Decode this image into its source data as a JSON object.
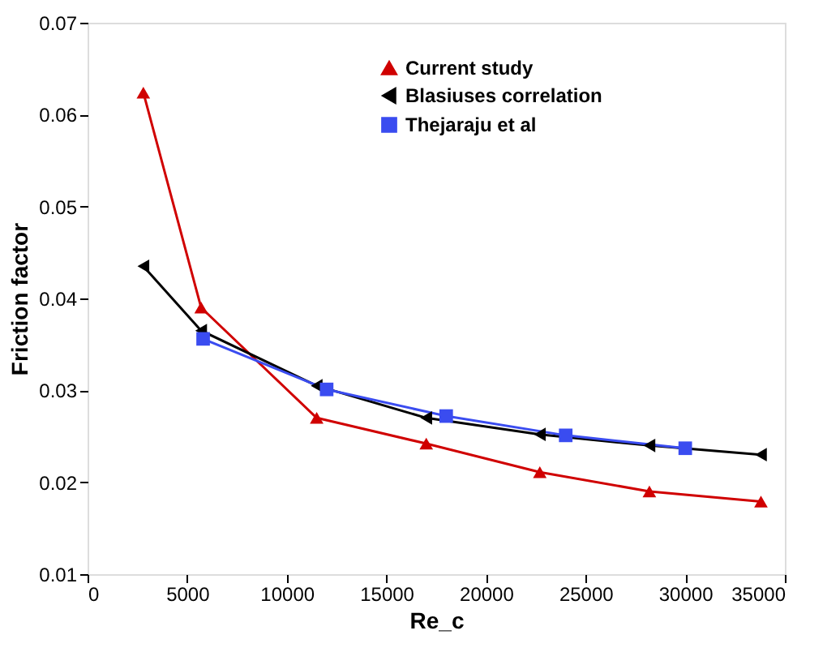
{
  "chart_data": {
    "type": "line",
    "xlabel": "Re_c",
    "ylabel": "Friction factor",
    "xlim": [
      0,
      35000
    ],
    "xticks": [
      0,
      5000,
      10000,
      15000,
      20000,
      25000,
      30000,
      35000
    ],
    "ylim": [
      0.01,
      0.07
    ],
    "yticks": [
      0.01,
      0.02,
      0.03,
      0.04,
      0.05,
      0.06,
      0.07
    ],
    "grid": false,
    "legend": "top right",
    "line_style": "solid",
    "series": [
      {
        "name": "Current study",
        "color": "#d00000",
        "marker": "triangle",
        "x": [
          2800,
          5700,
          11500,
          17000,
          22700,
          28200,
          33800
        ],
        "values": [
          0.0624,
          0.039,
          0.027,
          0.0242,
          0.0211,
          0.019,
          0.0179
        ]
      },
      {
        "name": "Blasiuses correlation",
        "color": "#000000",
        "marker": "triangle-left",
        "x": [
          2800,
          5700,
          11500,
          17000,
          22700,
          28200,
          33800
        ],
        "values": [
          0.0435,
          0.0365,
          0.0305,
          0.027,
          0.0252,
          0.024,
          0.023
        ]
      },
      {
        "name": "Thejaraju et al",
        "color": "#3a4cf0",
        "marker": "square",
        "x": [
          5800,
          12000,
          18000,
          24000,
          30000
        ],
        "values": [
          0.0356,
          0.0301,
          0.0272,
          0.0251,
          0.0237
        ]
      }
    ]
  }
}
